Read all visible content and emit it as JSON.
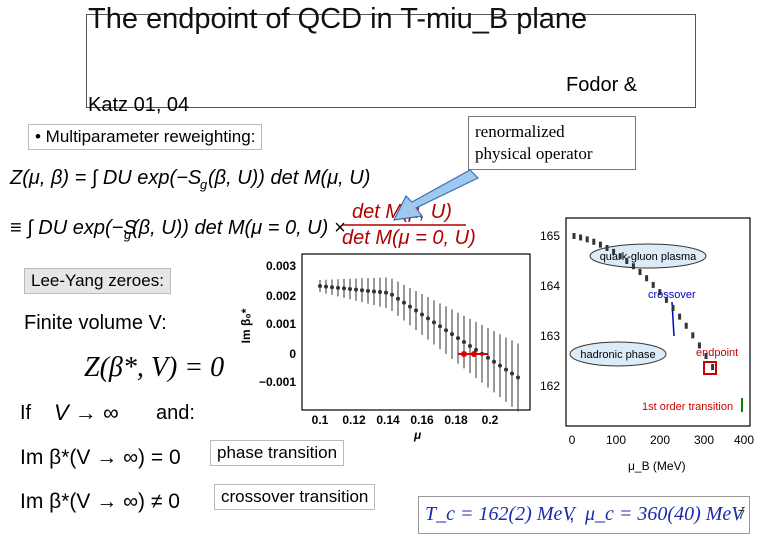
{
  "title": "The endpoint of QCD in T-miu_B plane",
  "authors_line1": "Fodor &",
  "authors_line2": "Katz  01, 04",
  "bullet": "• Multiparameter reweighting:",
  "renorm_label_line1": "renormalized",
  "renorm_label_line2": "physical operator",
  "lee_yang_label": "Lee-Yang zeroes:",
  "finite_volume_label": "Finite  volume V:",
  "if_label": "If",
  "and_label": "and:",
  "phase_transition_label": "phase transition",
  "crossover_transition_label": "crossover transition",
  "eq_Tc": "T_c = 162(2) MeV",
  "eq_mu_c": "μ_c = 360(40) MeV",
  "page_number": "7",
  "lee_yang_plot": {
    "y_ticks": [
      "0.003",
      "0.002",
      "0.001",
      "0",
      "−0.001"
    ],
    "x_ticks": [
      "0.1",
      "0.12",
      "0.14",
      "0.16",
      "0.18",
      "0.2"
    ],
    "x_label": "μ",
    "y_label": "Im β₀*"
  },
  "phase_diagram": {
    "y_ticks": [
      "165",
      "164",
      "163",
      "162"
    ],
    "x_ticks": [
      "0",
      "100",
      "200",
      "300",
      "400"
    ],
    "x_label": "μ_B (MeV)",
    "labels": {
      "qgp": "quark-gluon plasma",
      "crossover": "crossover",
      "hadronic": "hadronic phase",
      "endpoint": "endpoint",
      "first_order": "1st order transition"
    },
    "accent_color": "#0000cc",
    "endpoint_color": "#cc0000"
  }
}
